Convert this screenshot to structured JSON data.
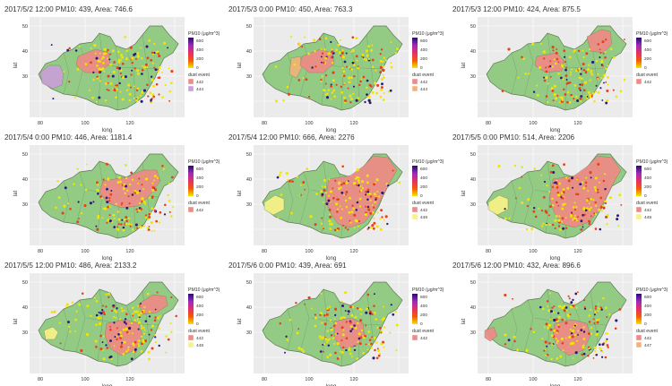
{
  "figure": {
    "axis": {
      "xlabel": "long",
      "ylabel": "lat",
      "xticks": [
        "80",
        "100",
        "120"
      ],
      "yticks": [
        "50",
        "40",
        "30"
      ]
    },
    "legend": {
      "pm10_title": "PM10 (μg/m^3)",
      "dust_title": "dust event"
    },
    "colors": {
      "land": "#93cb84",
      "border": "#5f7a55",
      "dust_red": "#ef8a86",
      "dust_purple": "#c9a0d8",
      "dust_orange": "#f3b27c",
      "dust_yellow": "#f7f288",
      "station_low": "#f2e600",
      "station_mid": "#e8401c",
      "station_high": "#2a1a7a",
      "pm10_gradient": [
        "#2b0a7a",
        "#9a2bb8",
        "#e62e6b",
        "#f35a00",
        "#f2e600"
      ]
    },
    "panels": [
      {
        "title": "2017/5/2 12:00  PM10: 439, Area: 746.6",
        "pm10_ticks": [
          "600",
          "400",
          "200",
          "0"
        ],
        "dust_events": [
          {
            "label": "442",
            "color": "#ef8a86"
          },
          {
            "label": "444",
            "color": "#c9a0d8"
          }
        ],
        "dust_regions": [
          "west_purple",
          "red_inner_mongolia"
        ]
      },
      {
        "title": "2017/5/3 0:00  PM10: 450, Area: 763.3",
        "pm10_ticks": [
          "600",
          "400",
          "200",
          "0"
        ],
        "dust_events": [
          {
            "label": "442",
            "color": "#ef8a86"
          },
          {
            "label": "444",
            "color": "#f3b27c"
          }
        ],
        "dust_regions": [
          "orange_west",
          "red_inner_mongolia"
        ]
      },
      {
        "title": "2017/5/3 12:00  PM10: 424, Area: 875.5",
        "pm10_ticks": [
          "600",
          "400",
          "200",
          "0"
        ],
        "dust_events": [
          {
            "label": "442",
            "color": "#ef8a86"
          }
        ],
        "dust_regions": [
          "red_central_small",
          "red_northeast"
        ]
      },
      {
        "title": "2017/5/4 0:00  PM10: 446, Area: 1181.4",
        "pm10_ticks": [
          "600",
          "400",
          "200",
          "0"
        ],
        "dust_events": [
          {
            "label": "442",
            "color": "#ef8a86"
          }
        ],
        "dust_regions": [
          "red_east_large"
        ]
      },
      {
        "title": "2017/5/4 12:00  PM10: 666, Area: 2276",
        "pm10_ticks": [
          "600",
          "400",
          "200",
          "0"
        ],
        "dust_events": [
          {
            "label": "442",
            "color": "#ef8a86"
          },
          {
            "label": "448",
            "color": "#f7f288"
          }
        ],
        "dust_regions": [
          "yellow_west",
          "red_east_huge"
        ]
      },
      {
        "title": "2017/5/5 0:00  PM10: 514, Area: 2206",
        "pm10_ticks": [
          "600",
          "400",
          "200",
          "0"
        ],
        "dust_events": [
          {
            "label": "442",
            "color": "#ef8a86"
          },
          {
            "label": "448",
            "color": "#f7f288"
          }
        ],
        "dust_regions": [
          "yellow_west",
          "red_east_huge"
        ]
      },
      {
        "title": "2017/5/5 12:00  PM10: 486, Area: 2133.2",
        "pm10_ticks": [
          "600",
          "400",
          "200",
          "0"
        ],
        "dust_events": [
          {
            "label": "442",
            "color": "#ef8a86"
          },
          {
            "label": "448",
            "color": "#f7f288"
          }
        ],
        "dust_regions": [
          "yellow_west_small",
          "red_south_east",
          "red_northeast_band"
        ]
      },
      {
        "title": "2017/5/6 0:00  PM10: 439, Area: 691",
        "pm10_ticks": [
          "600",
          "400",
          "200",
          "0"
        ],
        "dust_events": [
          {
            "label": "442",
            "color": "#ef8a86"
          }
        ],
        "dust_regions": [
          "red_central_east"
        ]
      },
      {
        "title": "2017/5/6 12:00  PM10: 432, Area: 896.6",
        "pm10_ticks": [
          "600",
          "400",
          "200",
          "0"
        ],
        "dust_events": [
          {
            "label": "442",
            "color": "#ef8a86"
          },
          {
            "label": "447",
            "color": "#f3b27c"
          }
        ],
        "dust_regions": [
          "orange_far_west",
          "red_south_east"
        ]
      }
    ]
  }
}
